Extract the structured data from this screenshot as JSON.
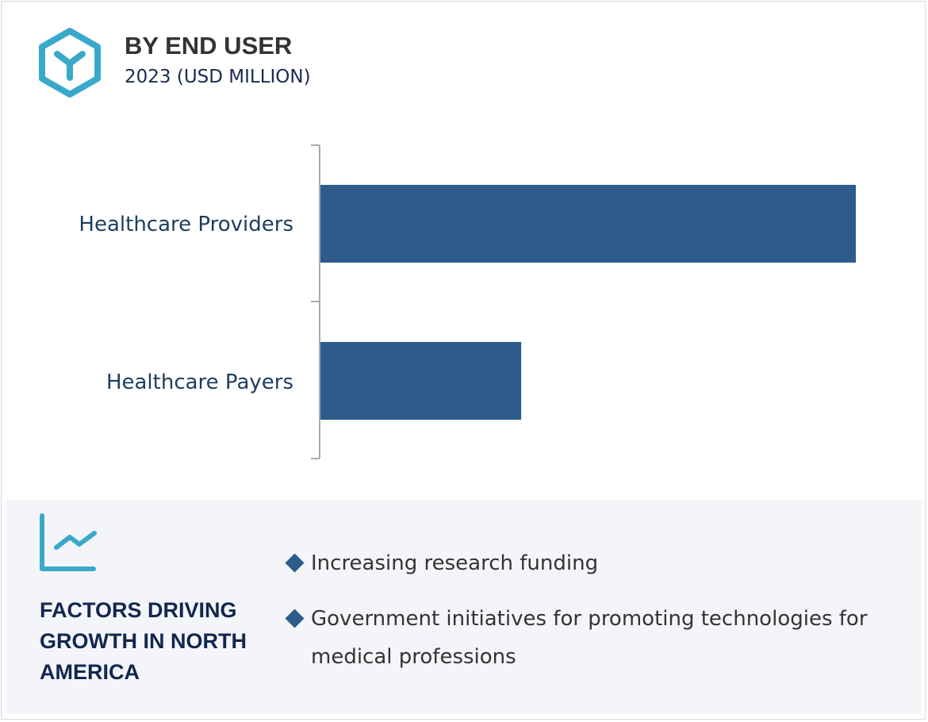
{
  "header": {
    "title": "BY END USER",
    "subtitle": "2023 (USD MILLION)",
    "icon": "hexagon-y-icon"
  },
  "colors": {
    "bar": "#2d5c8a",
    "accent": "#3aa9c9",
    "panel": "#f3f5f9"
  },
  "chart_data": {
    "type": "bar",
    "orientation": "horizontal",
    "title": "BY END USER",
    "subtitle": "2023 (USD MILLION)",
    "categories": [
      "Healthcare Providers",
      "Healthcare Payers"
    ],
    "values": [
      1.0,
      0.375
    ],
    "value_note_unit": "relative to largest bar (no value axis shown)",
    "grid": false,
    "legend": "none"
  },
  "factors_panel": {
    "icon": "line-chart-icon",
    "title": "FACTORS DRIVING GROWTH IN NORTH AMERICA",
    "items": [
      "Increasing research funding",
      "Government initiatives for promoting technologies for medical professions"
    ]
  }
}
